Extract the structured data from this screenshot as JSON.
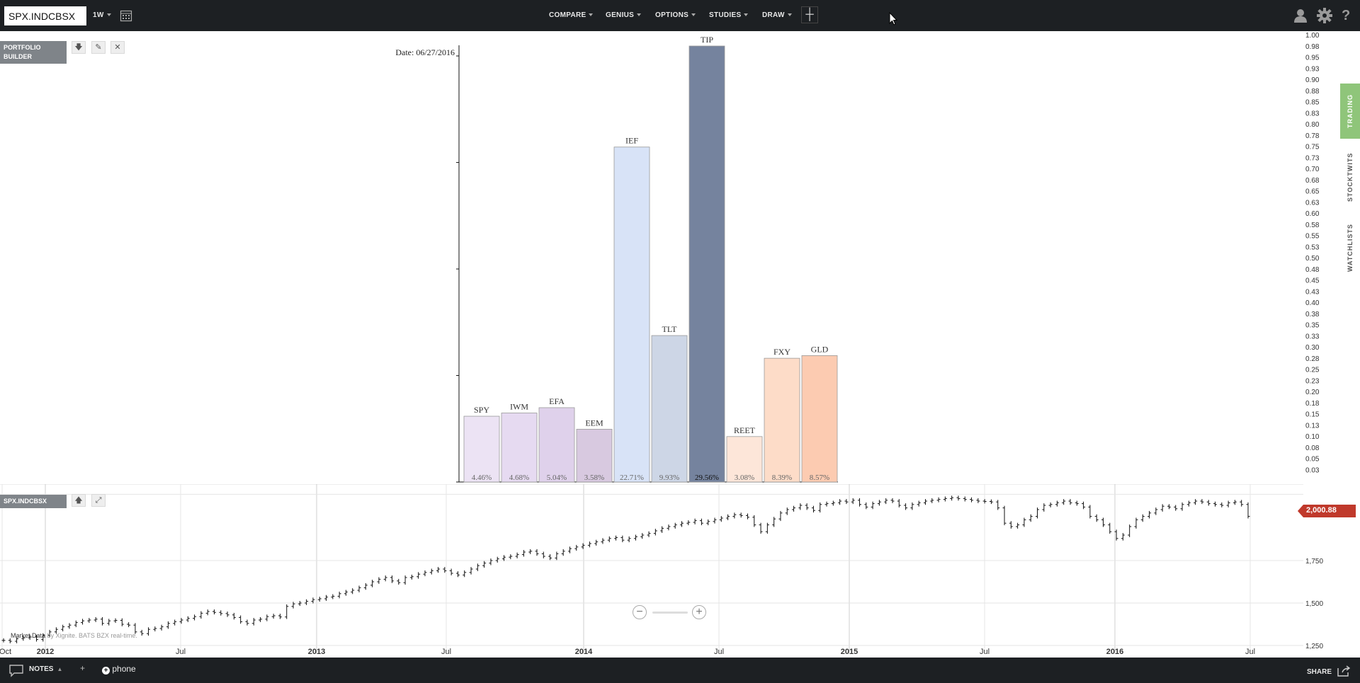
{
  "toolbar": {
    "symbol": "SPX.INDCBSX",
    "period": "1W",
    "menus": [
      "COMPARE",
      "GENIUS",
      "OPTIONS",
      "STUDIES",
      "DRAW"
    ]
  },
  "portfolio_panel": {
    "title": "PORTFOLIO BUILDER"
  },
  "price_panel": {
    "title": "SPX.INDCBSX",
    "last_price": "2,000.88",
    "attribution_prefix": "Market Data",
    "attribution_suffix": " by Xignite. BATS BZX real-time."
  },
  "right_tabs": [
    "TRADING",
    "STOCKTWITS",
    "WATCHLISTS"
  ],
  "status_bar": {
    "notes_label": "NOTES",
    "add_label": "+",
    "phone_label": "phone",
    "share_label": "SHARE"
  },
  "colors": {
    "topbar": "#1d2023",
    "last_price_badge": "#c0392b",
    "trading_tab": "#8fc57a"
  },
  "chart_data": [
    {
      "type": "bar",
      "title": "Date: 06/27/2016",
      "categories": [
        "SPY",
        "IWM",
        "EFA",
        "EEM",
        "IEF",
        "TLT",
        "TIP",
        "REET",
        "FXY",
        "GLD"
      ],
      "values": [
        4.46,
        4.68,
        5.04,
        3.58,
        22.71,
        9.93,
        29.56,
        3.08,
        8.39,
        8.57
      ],
      "labels": [
        "4.46%",
        "4.68%",
        "5.04%",
        "3.58%",
        "22.71%",
        "9.93%",
        "29.56%",
        "3.08%",
        "8.39%",
        "8.57%"
      ],
      "colors": [
        "#ece3f4",
        "#e6daf1",
        "#dfd1eb",
        "#d8c9e0",
        "#d8e3f7",
        "#cdd6e6",
        "#75839e",
        "#fde6d9",
        "#fddcc8",
        "#fccbb1"
      ],
      "right_axis_ticks": [
        "1.00",
        "0.98",
        "0.95",
        "0.93",
        "0.90",
        "0.88",
        "0.85",
        "0.83",
        "0.80",
        "0.78",
        "0.75",
        "0.73",
        "0.70",
        "0.68",
        "0.65",
        "0.63",
        "0.60",
        "0.58",
        "0.55",
        "0.53",
        "0.50",
        "0.48",
        "0.45",
        "0.43",
        "0.40",
        "0.38",
        "0.35",
        "0.33",
        "0.30",
        "0.28",
        "0.25",
        "0.23",
        "0.20",
        "0.18",
        "0.15",
        "0.13",
        "0.10",
        "0.08",
        "0.05",
        "0.03"
      ]
    },
    {
      "type": "line",
      "series": [
        {
          "values": [
            1280,
            1275,
            1290,
            1295,
            1300,
            1285,
            1310,
            1330,
            1345,
            1360,
            1370,
            1385,
            1395,
            1400,
            1405,
            1380,
            1395,
            1398,
            1375,
            1370,
            1330,
            1320,
            1345,
            1350,
            1360,
            1380,
            1390,
            1400,
            1410,
            1420,
            1440,
            1450,
            1445,
            1438,
            1430,
            1415,
            1390,
            1380,
            1400,
            1405,
            1420,
            1425,
            1418,
            1480,
            1495,
            1500,
            1510,
            1520,
            1525,
            1535,
            1540,
            1555,
            1565,
            1575,
            1590,
            1605,
            1625,
            1640,
            1650,
            1630,
            1620,
            1650,
            1655,
            1670,
            1680,
            1690,
            1700,
            1690,
            1675,
            1665,
            1680,
            1700,
            1720,
            1735,
            1750,
            1760,
            1770,
            1775,
            1785,
            1800,
            1805,
            1790,
            1775,
            1765,
            1790,
            1805,
            1820,
            1830,
            1840,
            1850,
            1860,
            1870,
            1880,
            1885,
            1870,
            1880,
            1890,
            1900,
            1910,
            1925,
            1940,
            1950,
            1960,
            1970,
            1975,
            1985,
            1970,
            1980,
            1990,
            2000,
            2010,
            2020,
            2015,
            2005,
            1960,
            1920,
            1960,
            1995,
            2030,
            2050,
            2060,
            2075,
            2060,
            2045,
            2080,
            2085,
            2090,
            2100,
            2095,
            2105,
            2080,
            2065,
            2085,
            2095,
            2105,
            2100,
            2075,
            2060,
            2080,
            2090,
            2100,
            2105,
            2110,
            2115,
            2120,
            2115,
            2110,
            2105,
            2100,
            2098,
            2095,
            2060,
            1970,
            1950,
            1960,
            1990,
            2010,
            2050,
            2075,
            2080,
            2090,
            2100,
            2090,
            2085,
            2065,
            2010,
            1990,
            1960,
            1920,
            1880,
            1900,
            1950,
            1990,
            2010,
            2030,
            2050,
            2070,
            2065,
            2055,
            2080,
            2090,
            2100,
            2095,
            2085,
            2080,
            2075,
            2090,
            2095,
            2080,
            2010
          ]
        }
      ],
      "x_tick_labels": [
        "Oct",
        "2012",
        "Jul",
        "2013",
        "Jul",
        "2014",
        "Jul",
        "2015",
        "Jul",
        "2016",
        "Jul"
      ],
      "y_tick_labels": [
        "1,750",
        "1,500",
        "1,250"
      ],
      "y_tick_values": [
        1750,
        1500,
        1250
      ],
      "ylim": [
        1200,
        2200
      ]
    }
  ]
}
